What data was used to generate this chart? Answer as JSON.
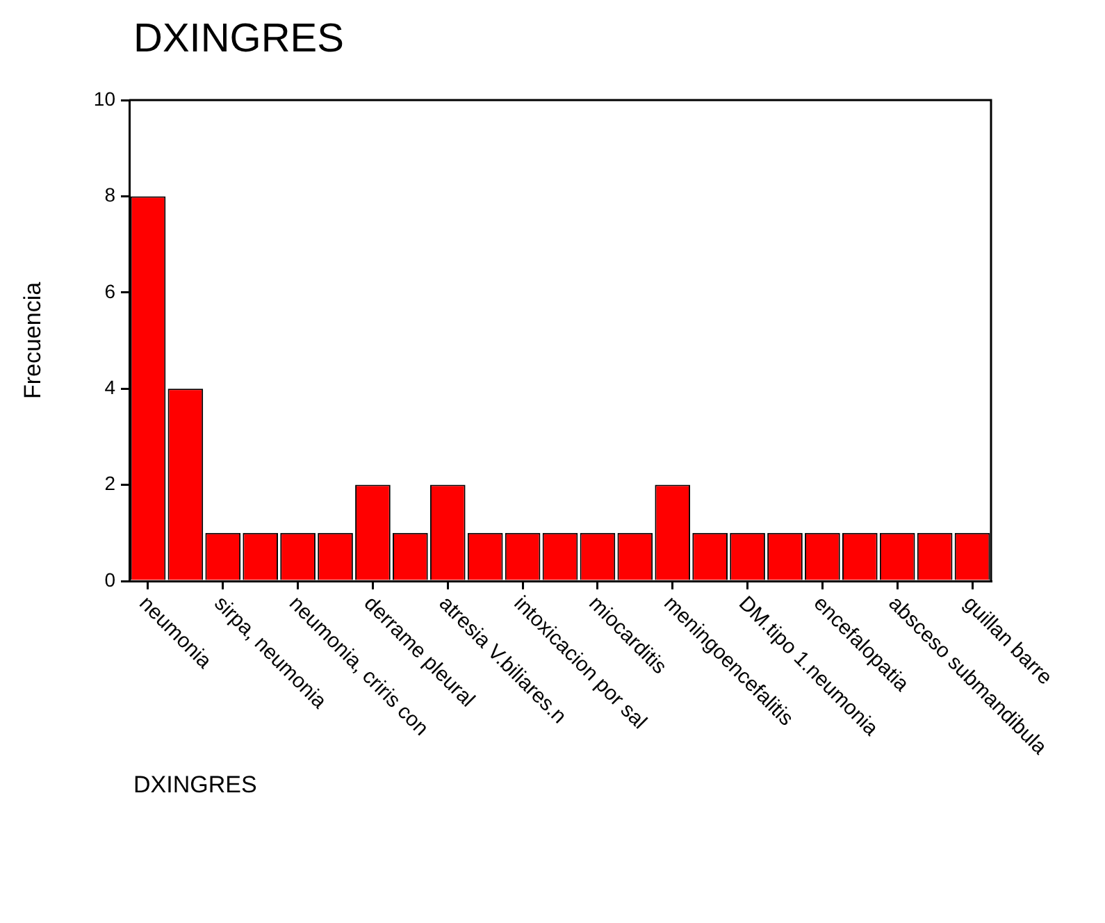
{
  "chart_data": {
    "type": "bar",
    "title": "DXINGRES",
    "xlabel": "DXINGRES",
    "ylabel": "Frecuencia",
    "categories": [
      "neumonia",
      null,
      "sirpa, neumonia",
      null,
      "neumonia, criris con",
      null,
      "derrame pleural",
      null,
      "atresia V.biliares.n",
      null,
      "intoxicacion por sal",
      null,
      "miocarditis",
      null,
      "meningoencefalitis",
      null,
      "DM.tipo 1.neumonia",
      null,
      "encefalopatia",
      null,
      "absceso submandibula",
      null,
      "guillan barre"
    ],
    "values": [
      8,
      4,
      1,
      1,
      1,
      1,
      2,
      1,
      2,
      1,
      1,
      1,
      1,
      1,
      2,
      1,
      1,
      1,
      1,
      1,
      1,
      1,
      1
    ],
    "color": "#ff0000",
    "ylim": [
      0,
      10
    ],
    "yticks": [
      0,
      2,
      4,
      6,
      8,
      10
    ],
    "grid": false,
    "legend": false
  }
}
